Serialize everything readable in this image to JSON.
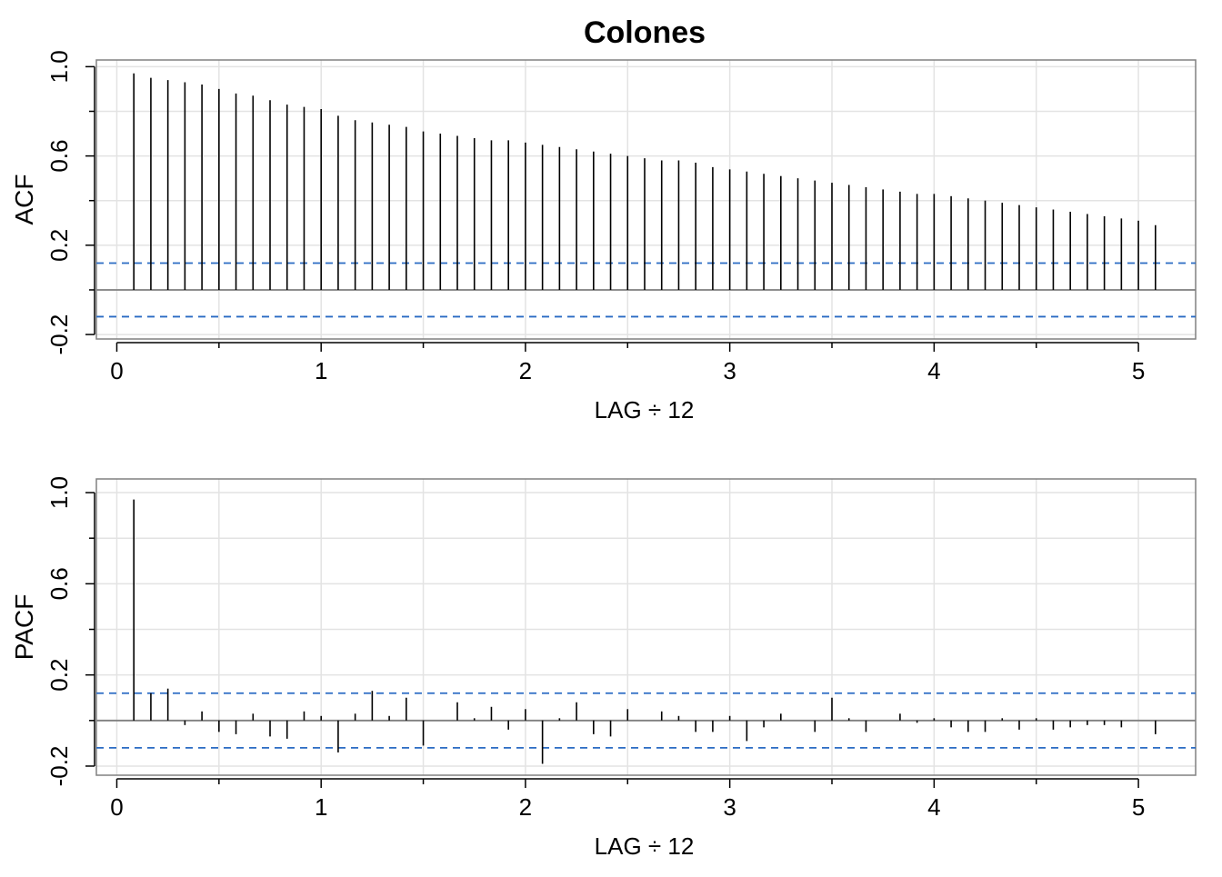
{
  "title": "Colones",
  "colors": {
    "panel_border": "#808080",
    "grid": "#e3e3e3",
    "bars": "#000000",
    "conf_band": "#2a6bc3",
    "zero_line": "#808080"
  },
  "chart_data": [
    {
      "type": "bar",
      "name": "acf-panel",
      "title": "Colones",
      "xlabel": "LAG ÷ 12",
      "ylabel": "ACF",
      "xlim": [
        -0.1,
        5.28
      ],
      "ylim": [
        -0.22,
        1.03
      ],
      "xticks": [
        0,
        1,
        2,
        3,
        4,
        5
      ],
      "xtick_labels": [
        "0",
        "1",
        "2",
        "3",
        "4",
        "5"
      ],
      "xminor_ticks": [
        0.5,
        1.5,
        2.5,
        3.5,
        4.5
      ],
      "yticks": [
        -0.2,
        0.2,
        0.6,
        1.0
      ],
      "ytick_labels": [
        "-0.2",
        "0.2",
        "0.6",
        "1.0"
      ],
      "yminor_ticks": [
        0.0,
        0.4,
        0.8
      ],
      "grid": true,
      "conf_bound": 0.12,
      "lag_step": 0.083333,
      "values": [
        0.97,
        0.95,
        0.94,
        0.93,
        0.92,
        0.9,
        0.88,
        0.87,
        0.85,
        0.83,
        0.82,
        0.81,
        0.78,
        0.76,
        0.75,
        0.74,
        0.73,
        0.71,
        0.7,
        0.69,
        0.68,
        0.67,
        0.67,
        0.66,
        0.65,
        0.64,
        0.63,
        0.62,
        0.61,
        0.6,
        0.59,
        0.58,
        0.58,
        0.57,
        0.55,
        0.54,
        0.53,
        0.52,
        0.51,
        0.5,
        0.49,
        0.48,
        0.47,
        0.46,
        0.45,
        0.44,
        0.43,
        0.43,
        0.42,
        0.41,
        0.4,
        0.39,
        0.38,
        0.37,
        0.36,
        0.35,
        0.34,
        0.33,
        0.32,
        0.31,
        0.29
      ]
    },
    {
      "type": "bar",
      "name": "pacf-panel",
      "title": "",
      "xlabel": "LAG ÷ 12",
      "ylabel": "PACF",
      "xlim": [
        -0.1,
        5.28
      ],
      "ylim": [
        -0.24,
        1.06
      ],
      "xticks": [
        0,
        1,
        2,
        3,
        4,
        5
      ],
      "xtick_labels": [
        "0",
        "1",
        "2",
        "3",
        "4",
        "5"
      ],
      "xminor_ticks": [
        0.5,
        1.5,
        2.5,
        3.5,
        4.5
      ],
      "yticks": [
        -0.2,
        0.2,
        0.6,
        1.0
      ],
      "ytick_labels": [
        "-0.2",
        "0.2",
        "0.6",
        "1.0"
      ],
      "yminor_ticks": [
        0.0,
        0.4,
        0.8
      ],
      "grid": true,
      "conf_bound": 0.12,
      "lag_step": 0.083333,
      "values": [
        0.97,
        0.12,
        0.14,
        -0.02,
        0.04,
        -0.05,
        -0.06,
        0.03,
        -0.07,
        -0.08,
        0.04,
        0.02,
        -0.14,
        0.03,
        0.13,
        0.02,
        0.1,
        -0.11,
        0.0,
        0.08,
        0.01,
        0.06,
        -0.04,
        0.05,
        -0.19,
        0.01,
        0.08,
        -0.06,
        -0.07,
        0.05,
        0.0,
        0.04,
        0.02,
        -0.05,
        -0.05,
        0.02,
        -0.09,
        -0.03,
        0.03,
        0.0,
        -0.05,
        0.1,
        0.01,
        -0.05,
        0.0,
        0.03,
        -0.01,
        0.01,
        -0.03,
        -0.05,
        -0.05,
        0.01,
        -0.04,
        0.01,
        -0.04,
        -0.03,
        -0.02,
        -0.02,
        -0.03,
        0.0,
        -0.06
      ]
    }
  ]
}
